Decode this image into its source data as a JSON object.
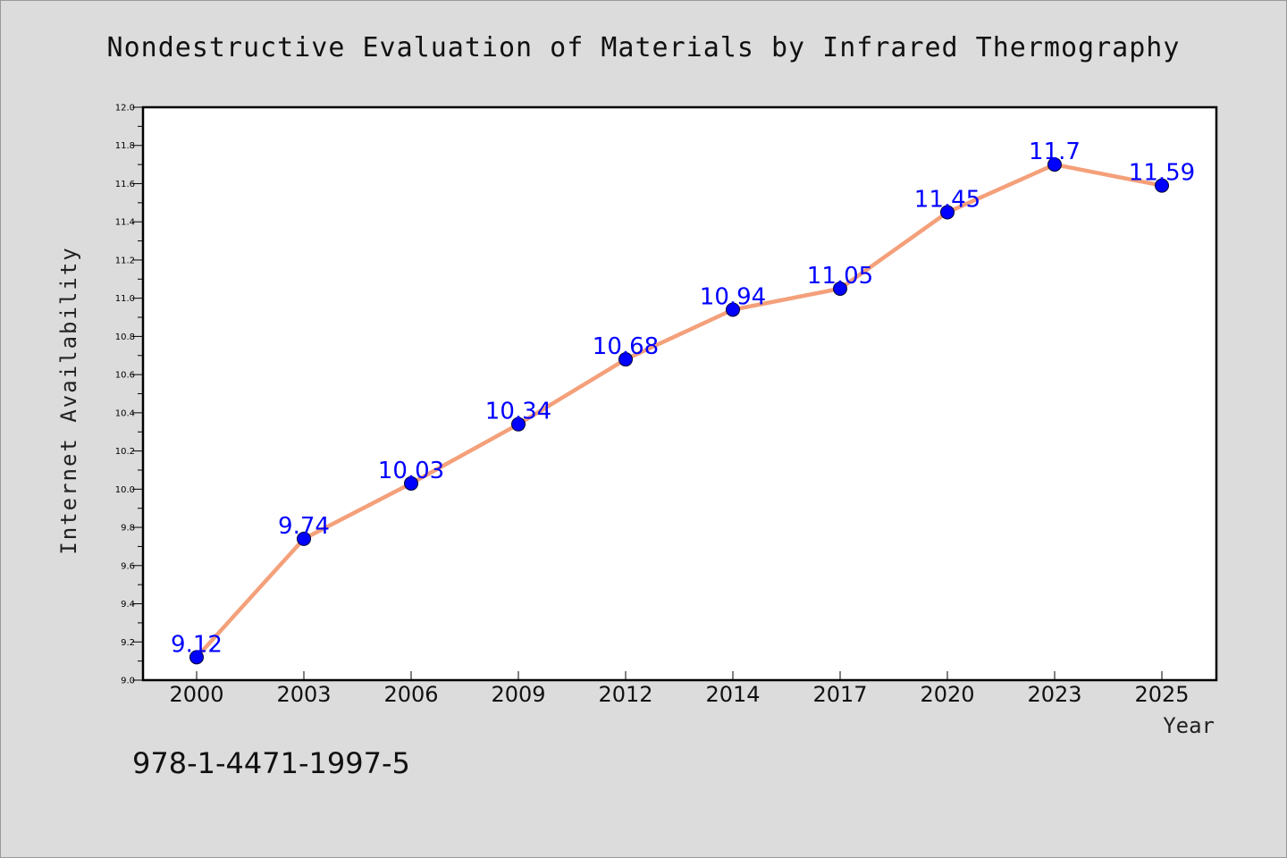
{
  "chart_data": {
    "type": "line",
    "title": "Nondestructive Evaluation of Materials by Infrared Thermography",
    "xlabel": "Year",
    "ylabel": "Internet Availability",
    "categories": [
      "2000",
      "2003",
      "2006",
      "2009",
      "2012",
      "2014",
      "2017",
      "2020",
      "2023",
      "2025"
    ],
    "series": [
      {
        "values": [
          9.12,
          9.74,
          10.03,
          10.34,
          10.68,
          10.94,
          11.05,
          11.45,
          11.7,
          11.59
        ]
      }
    ],
    "data_labels": [
      "9.12",
      "9.74",
      "10.03",
      "10.34",
      "10.68",
      "10.94",
      "11.05",
      "11.45",
      "11.7",
      "11.59"
    ],
    "ylim": [
      9.0,
      12.0
    ],
    "yticks": [
      "9.0",
      "9.2",
      "9.4",
      "9.6",
      "9.8",
      "10.0",
      "10.2",
      "10.4",
      "10.6",
      "10.8",
      "11.0",
      "11.2",
      "11.4",
      "11.6",
      "11.8",
      "12.0"
    ],
    "grid": false,
    "colors": {
      "line": "#f4a07a",
      "marker": "#0000ff",
      "label": "#0000ff",
      "plot_background": "#ffffff",
      "page_background": "#dcdcdc"
    }
  },
  "footer_text": "978-1-4471-1997-5"
}
